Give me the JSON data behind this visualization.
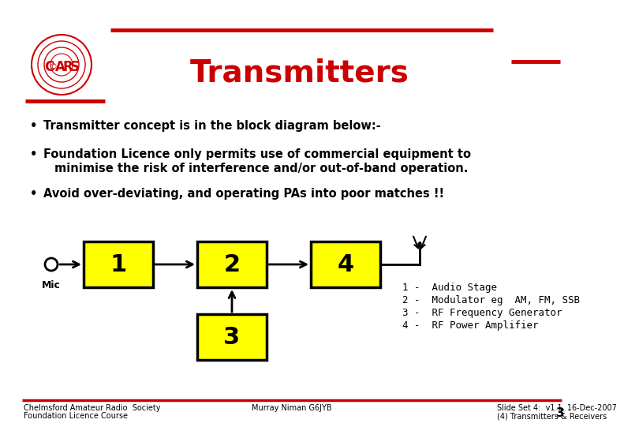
{
  "title": "Transmitters",
  "title_color": "#CC0000",
  "title_fontsize": 28,
  "bg_color": "#FFFFFF",
  "red_color": "#CC0000",
  "bullet1": "Transmitter concept is in the block diagram below:-",
  "bullet2a": "Foundation Licence only permits use of commercial equipment to",
  "bullet2b": "minimise the risk of interference and/or out-of-band operation.",
  "bullet3": "Avoid over-deviating, and operating PAs into poor matches !!",
  "box_color": "#FFFF00",
  "box_edge_color": "#000000",
  "legend_lines": [
    "1 -  Audio Stage",
    "2 -  Modulator eg  AM, FM, SSB",
    "3 -  RF Frequency Generator",
    "4 -  RF Power Amplifier"
  ],
  "footer_left1": "Chelmsford Amateur Radio  Society",
  "footer_left2": "Foundation Licence Course",
  "footer_mid": "Murray Niman G6JYB",
  "footer_right1": "Slide Set 4:  v1.1, 16-Dec-2007",
  "footer_right2": "(4) Transmitters & Receivers",
  "footer_num": "3"
}
